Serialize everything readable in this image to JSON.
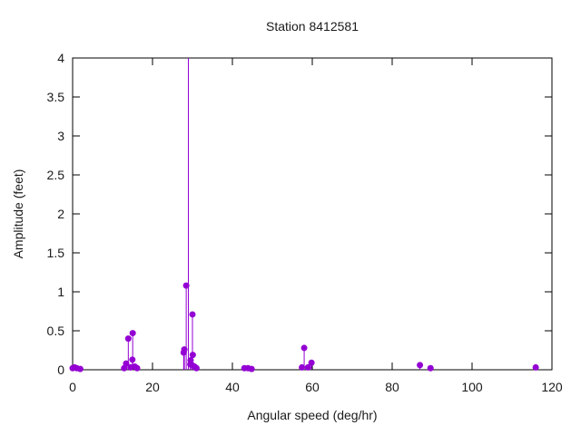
{
  "title": "Station 8412581",
  "chart_data": {
    "type": "scatter",
    "style": "impulse-stems-with-points",
    "title": "Station 8412581",
    "xlabel": "Angular speed (deg/hr)",
    "ylabel": "Amplitude (feet)",
    "xlim": [
      0,
      120
    ],
    "ylim": [
      0,
      4
    ],
    "xticks": [
      0,
      20,
      40,
      60,
      80,
      100,
      120
    ],
    "yticks": [
      0,
      0.5,
      1,
      1.5,
      2,
      2.5,
      3,
      3.5,
      4
    ],
    "grid": false,
    "legend": "none",
    "point_color": "#9400d3",
    "frame_color": "#000000",
    "text_color": "#1a1a1a",
    "points": [
      {
        "x": 0.0,
        "y": 0.02
      },
      {
        "x": 0.5,
        "y": 0.03
      },
      {
        "x": 1.0,
        "y": 0.02
      },
      {
        "x": 1.9,
        "y": 0.01
      },
      {
        "x": 12.9,
        "y": 0.02
      },
      {
        "x": 13.4,
        "y": 0.08
      },
      {
        "x": 13.94,
        "y": 0.4
      },
      {
        "x": 14.49,
        "y": 0.03
      },
      {
        "x": 14.96,
        "y": 0.13
      },
      {
        "x": 15.04,
        "y": 0.47
      },
      {
        "x": 15.59,
        "y": 0.04
      },
      {
        "x": 16.14,
        "y": 0.02
      },
      {
        "x": 27.8,
        "y": 0.22
      },
      {
        "x": 27.97,
        "y": 0.26
      },
      {
        "x": 28.44,
        "y": 1.08
      },
      {
        "x": 28.98,
        "y": 4.0,
        "clipped": true
      },
      {
        "x": 29.46,
        "y": 0.07
      },
      {
        "x": 29.53,
        "y": 0.12
      },
      {
        "x": 29.9,
        "y": 0.06
      },
      {
        "x": 30.0,
        "y": 0.71
      },
      {
        "x": 30.08,
        "y": 0.19
      },
      {
        "x": 30.54,
        "y": 0.04
      },
      {
        "x": 31.0,
        "y": 0.02
      },
      {
        "x": 43.0,
        "y": 0.02
      },
      {
        "x": 43.9,
        "y": 0.02
      },
      {
        "x": 44.8,
        "y": 0.01
      },
      {
        "x": 57.4,
        "y": 0.03
      },
      {
        "x": 57.97,
        "y": 0.28
      },
      {
        "x": 58.9,
        "y": 0.03
      },
      {
        "x": 59.8,
        "y": 0.09
      },
      {
        "x": 86.95,
        "y": 0.06
      },
      {
        "x": 89.6,
        "y": 0.02
      },
      {
        "x": 115.94,
        "y": 0.03
      }
    ]
  }
}
